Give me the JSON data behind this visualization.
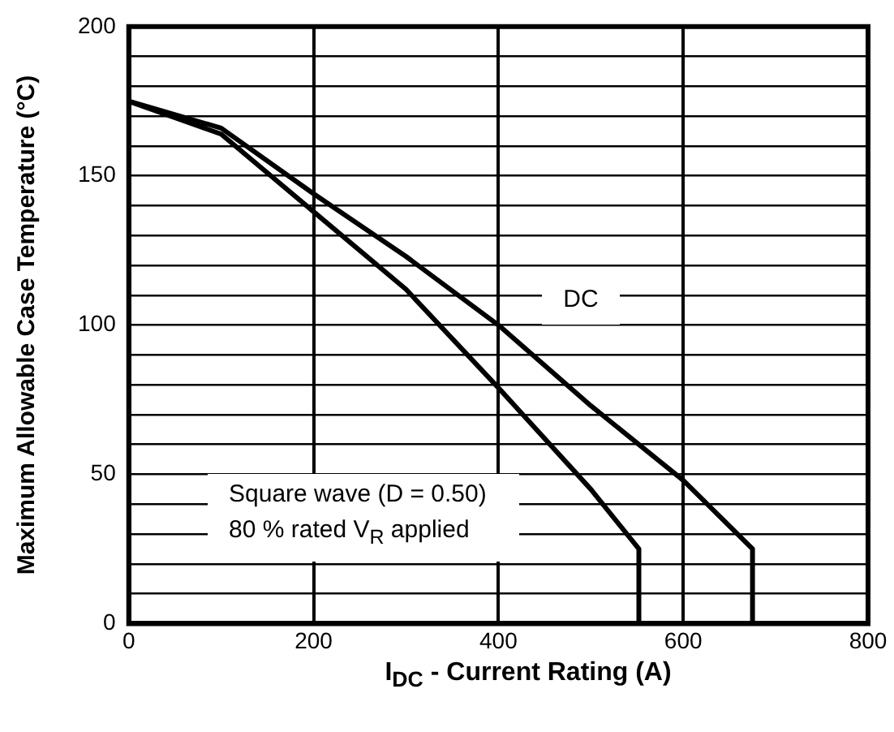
{
  "chart_data": {
    "type": "line",
    "xlabel": "I$_{DC}$ - Current Rating (A)",
    "ylabel": "Maximum Allowable Case Temperature (°C)",
    "xlim": [
      0,
      800
    ],
    "xticks": [
      0,
      200,
      400,
      600,
      800
    ],
    "ylim": [
      0,
      200
    ],
    "yticks": [
      0,
      {
        "value": 10,
        "label": null
      },
      {
        "value": 20,
        "label": null
      },
      {
        "value": 30,
        "label": null
      },
      {
        "value": 40,
        "label": null
      },
      50,
      {
        "value": 60,
        "label": null
      },
      {
        "value": 70,
        "label": null
      },
      {
        "value": 80,
        "label": null
      },
      {
        "value": 90,
        "label": null
      },
      100,
      {
        "value": 110,
        "label": null
      },
      {
        "value": 120,
        "label": null
      },
      {
        "value": 130,
        "label": null
      },
      {
        "value": 140,
        "label": null
      },
      150,
      {
        "value": 160,
        "label": null
      },
      {
        "value": 170,
        "label": null
      },
      {
        "value": 180,
        "label": null
      },
      {
        "value": 190,
        "label": null
      },
      200
    ],
    "grid": true,
    "legend": false,
    "marker": "none",
    "line_style": "solid",
    "series": [
      {
        "name": "Square wave (D = 0.50)",
        "color": "#000000",
        "x": [
          0,
          100,
          200,
          300,
          400,
          500,
          552,
          552
        ],
        "values": [
          175,
          164,
          138,
          112,
          79,
          45,
          25,
          0
        ]
      },
      {
        "name": "DC",
        "color": "#000000",
        "x": [
          0,
          100,
          200,
          300,
          400,
          500,
          600,
          675,
          675
        ],
        "values": [
          175,
          166,
          144,
          123,
          100,
          73,
          48,
          25,
          0
        ]
      }
    ],
    "annotations": [
      "80 % rated V$_{R}$ applied"
    ]
  }
}
